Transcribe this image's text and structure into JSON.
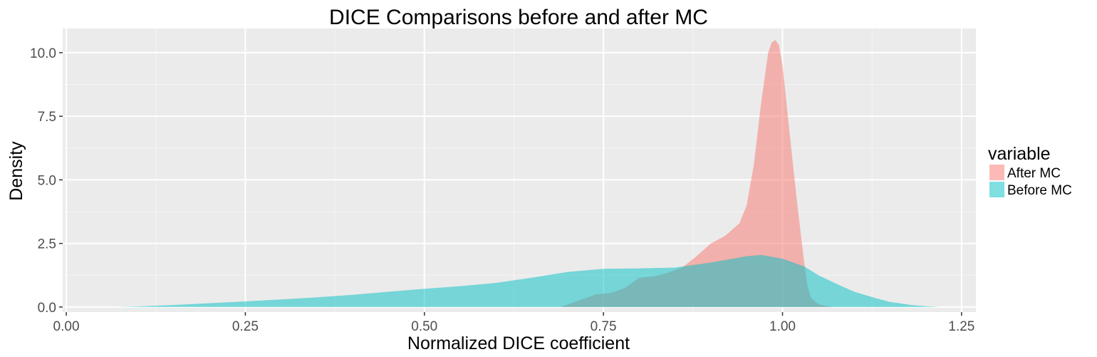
{
  "chart_data": {
    "type": "area",
    "title": "DICE Comparisons before and after MC",
    "xlabel": "Normalized DICE coefficient",
    "ylabel": "Density",
    "xlim": [
      -0.005,
      1.27
    ],
    "ylim": [
      -0.2,
      10.95
    ],
    "x_ticks": [
      0,
      0.25,
      0.5,
      0.75,
      1.0,
      1.25
    ],
    "x_tick_labels": [
      "0.00",
      "0.25",
      "0.50",
      "0.75",
      "1.00",
      "1.25"
    ],
    "y_ticks": [
      0,
      2.5,
      5.0,
      7.5,
      10.0
    ],
    "y_tick_labels": [
      "0.0",
      "2.5",
      "5.0",
      "7.5",
      "10.0"
    ],
    "grid": true,
    "legend": {
      "title": "variable",
      "position": "right"
    },
    "series": [
      {
        "name": "After MC",
        "color": "#F8766D",
        "x": [
          0.69,
          0.7,
          0.72,
          0.74,
          0.76,
          0.78,
          0.8,
          0.82,
          0.84,
          0.86,
          0.88,
          0.9,
          0.92,
          0.94,
          0.95,
          0.96,
          0.97,
          0.98,
          0.985,
          0.99,
          0.995,
          1.0,
          1.005,
          1.01,
          1.02,
          1.03,
          1.035,
          1.04,
          1.05,
          1.06,
          1.07
        ],
        "values": [
          0.0,
          0.1,
          0.3,
          0.5,
          0.55,
          0.75,
          1.15,
          1.2,
          1.35,
          1.55,
          2.0,
          2.5,
          2.8,
          3.3,
          4.0,
          5.6,
          8.0,
          10.0,
          10.4,
          10.5,
          10.3,
          9.5,
          8.2,
          6.8,
          4.2,
          1.8,
          0.8,
          0.35,
          0.12,
          0.04,
          0.0
        ]
      },
      {
        "name": "Before MC",
        "color": "#00BFC4",
        "x": [
          0.07,
          0.1,
          0.15,
          0.2,
          0.25,
          0.3,
          0.35,
          0.4,
          0.45,
          0.5,
          0.55,
          0.6,
          0.65,
          0.7,
          0.75,
          0.8,
          0.85,
          0.9,
          0.95,
          0.97,
          1.0,
          1.03,
          1.05,
          1.08,
          1.1,
          1.13,
          1.15,
          1.18,
          1.2,
          1.22
        ],
        "values": [
          0.0,
          0.02,
          0.08,
          0.15,
          0.22,
          0.3,
          0.38,
          0.48,
          0.6,
          0.72,
          0.82,
          0.95,
          1.15,
          1.38,
          1.5,
          1.52,
          1.55,
          1.75,
          2.0,
          2.05,
          1.9,
          1.6,
          1.25,
          0.85,
          0.6,
          0.35,
          0.2,
          0.08,
          0.03,
          0.0
        ]
      }
    ]
  }
}
